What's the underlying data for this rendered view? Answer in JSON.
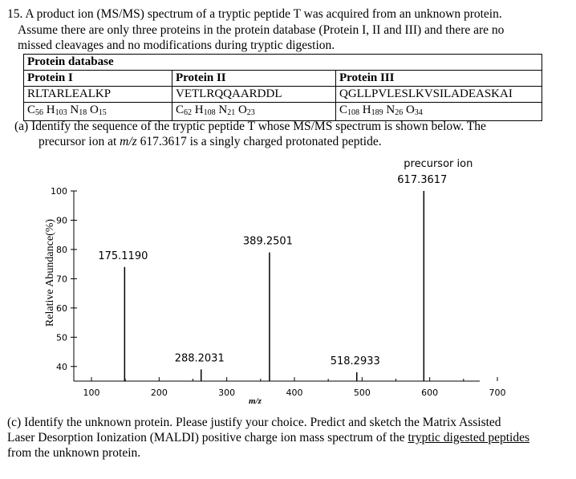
{
  "question": {
    "line1": "15. A product ion (MS/MS) spectrum of a tryptic peptide T was acquired from an unknown protein.",
    "line2": "Assume there are only three proteins in the protein database (Protein I, II and III) and there are no",
    "line3": "missed cleavages and no modifications during tryptic digestion."
  },
  "database": {
    "title": "Protein database",
    "proteins": [
      {
        "name": "Protein I",
        "sequence": "RLTARLEALKP",
        "formula": [
          [
            "C",
            "56"
          ],
          [
            "H",
            "103"
          ],
          [
            "N",
            "18"
          ],
          [
            "O",
            "15"
          ]
        ]
      },
      {
        "name": "Protein II",
        "sequence": "VETLRQQAARDDL",
        "formula": [
          [
            "C",
            "62"
          ],
          [
            "H",
            "108"
          ],
          [
            "N",
            "21"
          ],
          [
            "O",
            "23"
          ]
        ]
      },
      {
        "name": "Protein III",
        "sequence": "QGLLPVLESLKVSILADEASKAI",
        "formula": [
          [
            "C",
            "108"
          ],
          [
            "H",
            "189"
          ],
          [
            "N",
            "26"
          ],
          [
            "O",
            "34"
          ]
        ]
      }
    ]
  },
  "part_a": {
    "line1": "(a)  Identify the sequence of the tryptic peptide T whose MS/MS spectrum is shown below. The",
    "line2_pre": "precursor ion at ",
    "line2_mz": "m/z",
    "line2_post": " 617.3617 is a singly charged protonated peptide."
  },
  "chart_data": {
    "type": "bar",
    "xlabel": "m/z",
    "ylabel": "Relative Abundance(%)",
    "xlim": [
      100,
      700
    ],
    "ylim": [
      35,
      100
    ],
    "x_ticks": [
      100,
      200,
      300,
      400,
      500,
      600,
      700
    ],
    "y_ticks": [
      40,
      50,
      60,
      70,
      80,
      90,
      100
    ],
    "peaks": [
      {
        "mz": 175.119,
        "abundance": 74,
        "label": "175.1190"
      },
      {
        "mz": 288.2031,
        "abundance": 39,
        "label": "288.2031"
      },
      {
        "mz": 389.2501,
        "abundance": 79,
        "label": "389.2501"
      },
      {
        "mz": 518.2933,
        "abundance": 35,
        "label": "518.2933"
      },
      {
        "mz": 617.3617,
        "abundance": 100,
        "label": "617.3617"
      }
    ],
    "annotations": [
      {
        "text": "precursor ion",
        "near_mz": 617.3617
      }
    ]
  },
  "part_c": {
    "line1": "(c)       Identify the unknown protein. Please justify your choice.  Predict and sketch the Matrix Assisted",
    "line2_pre": "Laser Desorption Ionization (MALDI) positive charge ion mass spectrum of the ",
    "line2_ul": "tryptic digested peptides",
    "line3": "from the unknown protein."
  }
}
